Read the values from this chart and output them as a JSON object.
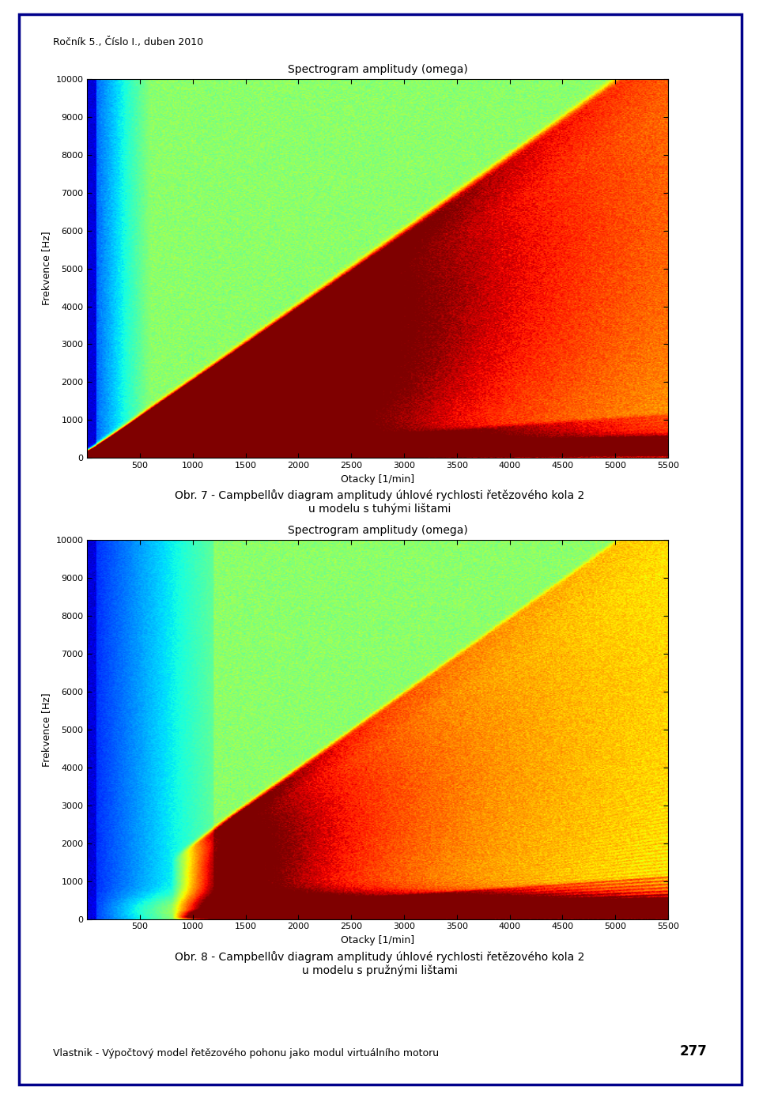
{
  "title1": "Spectrogram amplitudy (omega)",
  "title2": "Spectrogram amplitudy (omega)",
  "xlabel": "Otacky [1/min]",
  "ylabel": "Frekvence [Hz]",
  "xlim": [
    0,
    5500
  ],
  "ylim": [
    0,
    10000
  ],
  "xticks": [
    500,
    1000,
    1500,
    2000,
    2500,
    3000,
    3500,
    4000,
    4500,
    5000,
    5500
  ],
  "yticks": [
    0,
    1000,
    2000,
    3000,
    4000,
    5000,
    6000,
    7000,
    8000,
    9000,
    10000
  ],
  "caption1": "Obr. 7 - Campbellův diagram amplitudy úhlové rychlosti řetězového kola 2\nu modelu s tuhými lištami",
  "caption2": "Obr. 8 - Campbellův diagram amplitudy úhlové rychlosti řetězového kola 2\nu modelu s pružnými lištami",
  "header_text": "Ročník 5., Číslo I., duben 2010",
  "footer_text": "Vlastnik - Výpočtový model řetězového pohonu jako modul virtuálního motoru",
  "page_number": "277",
  "border_color": "#00008B",
  "background_color": "#FFFFFF",
  "title_fontsize": 10,
  "label_fontsize": 9,
  "tick_fontsize": 8,
  "caption_fontsize": 10,
  "header_fontsize": 9,
  "footer_fontsize": 9,
  "harmonics1_base_rpm": 60.0,
  "harmonics1_num": 18,
  "harmonics2_base_rpm": 60.0,
  "harmonics2_num": 18,
  "background_base": 0.52,
  "background_noise": 0.04,
  "low_rpm_threshold": 300,
  "low_rpm_value": 0.18,
  "very_low_rpm_threshold": 80,
  "very_low_rpm_value": 0.08
}
